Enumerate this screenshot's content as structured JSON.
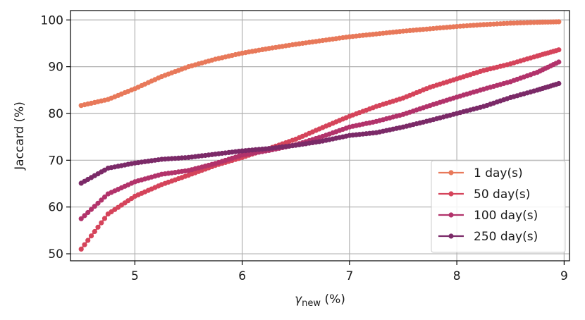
{
  "chart_data": {
    "type": "line",
    "xlabel_symbol": "γ",
    "xlabel_subscript": "new",
    "xlabel_unit": " (%)",
    "ylabel": "Jaccard (%)",
    "xlim": [
      4.4,
      9.05
    ],
    "ylim": [
      48.5,
      102
    ],
    "xticks": [
      5,
      6,
      7,
      8,
      9
    ],
    "yticks": [
      50,
      60,
      70,
      80,
      90,
      100
    ],
    "grid": true,
    "legend_position": "lower-right",
    "x": [
      4.5,
      4.75,
      5.0,
      5.25,
      5.5,
      5.75,
      6.0,
      6.25,
      6.5,
      6.75,
      7.0,
      7.25,
      7.5,
      7.75,
      8.0,
      8.25,
      8.5,
      8.75,
      8.95
    ],
    "series": [
      {
        "name": "1 day(s)",
        "color": "#e8795a",
        "values": [
          81.7,
          83.0,
          85.3,
          87.9,
          90.0,
          91.6,
          92.9,
          93.9,
          94.8,
          95.6,
          96.4,
          97.0,
          97.6,
          98.1,
          98.6,
          99.0,
          99.3,
          99.5,
          99.6
        ]
      },
      {
        "name": "50 day(s)",
        "color": "#d5445b",
        "values": [
          51.0,
          58.5,
          62.3,
          64.8,
          66.8,
          68.9,
          70.6,
          72.5,
          74.5,
          77.0,
          79.4,
          81.5,
          83.3,
          85.6,
          87.4,
          89.2,
          90.6,
          92.3,
          93.6
        ]
      },
      {
        "name": "100 day(s)",
        "color": "#b2336b",
        "values": [
          57.5,
          62.8,
          65.4,
          67.0,
          67.8,
          69.3,
          71.1,
          72.1,
          73.3,
          75.1,
          77.1,
          78.3,
          79.8,
          81.7,
          83.5,
          85.2,
          86.8,
          88.8,
          91.0
        ]
      },
      {
        "name": "250 day(s)",
        "color": "#7b2a68",
        "values": [
          65.1,
          68.3,
          69.4,
          70.2,
          70.6,
          71.3,
          72.0,
          72.5,
          73.2,
          74.1,
          75.3,
          75.9,
          77.1,
          78.5,
          80.0,
          81.5,
          83.4,
          85.0,
          86.4
        ]
      }
    ]
  }
}
